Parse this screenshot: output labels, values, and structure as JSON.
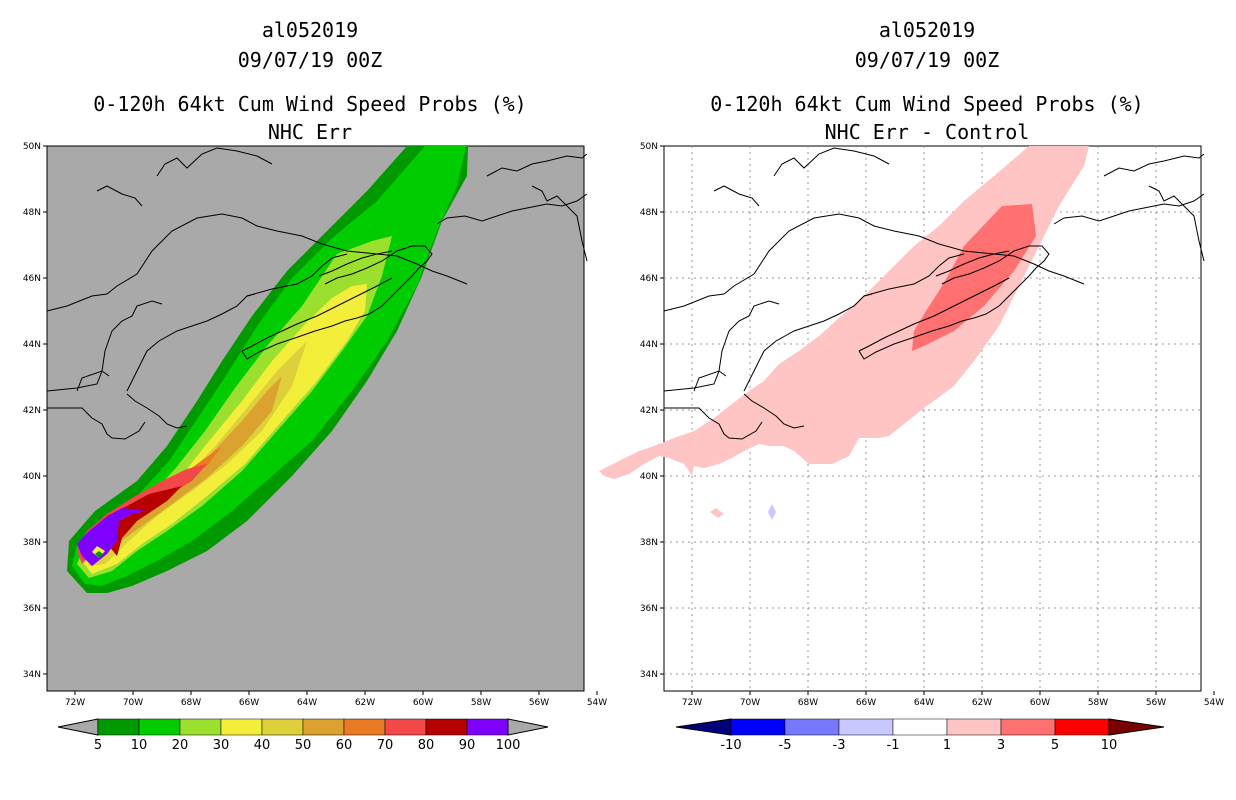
{
  "left": {
    "storm_id": "al052019",
    "datetime": "09/07/19 00Z",
    "title": "0-120h 64kt Cum Wind Speed Probs (%)",
    "subtitle": "NHC Err",
    "background_color": "#a9a9a9",
    "lat_labels": [
      "50N",
      "48N",
      "46N",
      "44N",
      "42N",
      "40N",
      "38N",
      "36N",
      "34N"
    ],
    "lon_labels": [
      "72W",
      "70W",
      "68W",
      "66W",
      "64W",
      "62W",
      "60W",
      "58W",
      "56W",
      "54W"
    ],
    "colorbar": {
      "labels": [
        "5",
        "10",
        "20",
        "30",
        "40",
        "50",
        "60",
        "70",
        "80",
        "90",
        "100"
      ],
      "colors": [
        "#009a00",
        "#00cc00",
        "#9be02e",
        "#f2ee3a",
        "#ddd03a",
        "#dca230",
        "#ea7b22",
        "#f24848",
        "#b70000",
        "#7e00ff"
      ],
      "arrow_color": "#a9a9a9"
    }
  },
  "right": {
    "storm_id": "al052019",
    "datetime": "09/07/19 00Z",
    "title": "0-120h 64kt Cum Wind Speed Probs (%)",
    "subtitle": "NHC Err - Control",
    "background_color": "#ffffff",
    "lat_labels": [
      "50N",
      "48N",
      "46N",
      "44N",
      "42N",
      "40N",
      "38N",
      "36N",
      "34N"
    ],
    "lon_labels": [
      "72W",
      "70W",
      "68W",
      "66W",
      "64W",
      "62W",
      "60W",
      "58W",
      "56W",
      "54W"
    ],
    "colorbar": {
      "labels": [
        "-10",
        "-5",
        "-3",
        "-1",
        "1",
        "3",
        "5",
        "10"
      ],
      "colors": [
        "#0000c8",
        "#0000ff",
        "#7878ff",
        "#c8c8ff",
        "#ffffff",
        "#ffc4c4",
        "#ff7070",
        "#ff0000",
        "#a00000"
      ],
      "low_arrow_color": "#00007a",
      "high_arrow_color": "#7a0000"
    }
  }
}
